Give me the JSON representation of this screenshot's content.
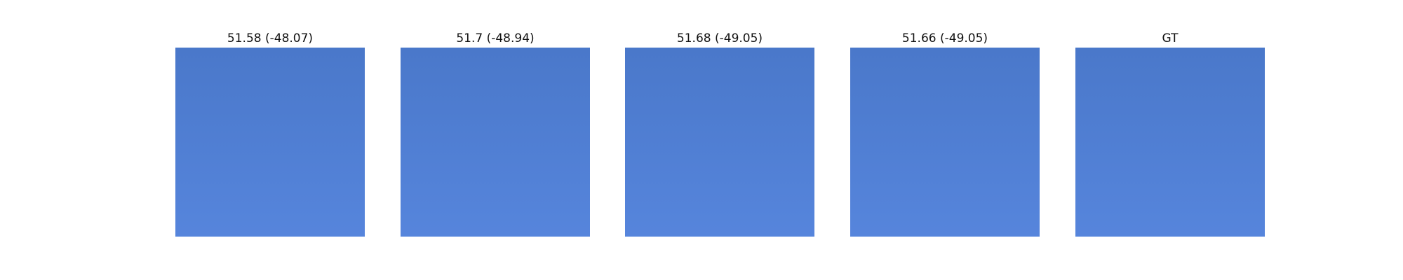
{
  "panels": [
    {
      "title": "51.58 (-48.07)",
      "colors": {
        "top": "#4a78ca",
        "bottom": "#5685dc"
      }
    },
    {
      "title": "51.7 (-48.94)",
      "colors": {
        "top": "#4a78ca",
        "bottom": "#5685dc"
      }
    },
    {
      "title": "51.68 (-49.05)",
      "colors": {
        "top": "#4a78ca",
        "bottom": "#5685dc"
      }
    },
    {
      "title": "51.66 (-49.05)",
      "colors": {
        "top": "#4a78ca",
        "bottom": "#5685dc"
      }
    },
    {
      "title": "GT",
      "colors": {
        "top": "#4a78ca",
        "bottom": "#5685dc"
      }
    }
  ]
}
